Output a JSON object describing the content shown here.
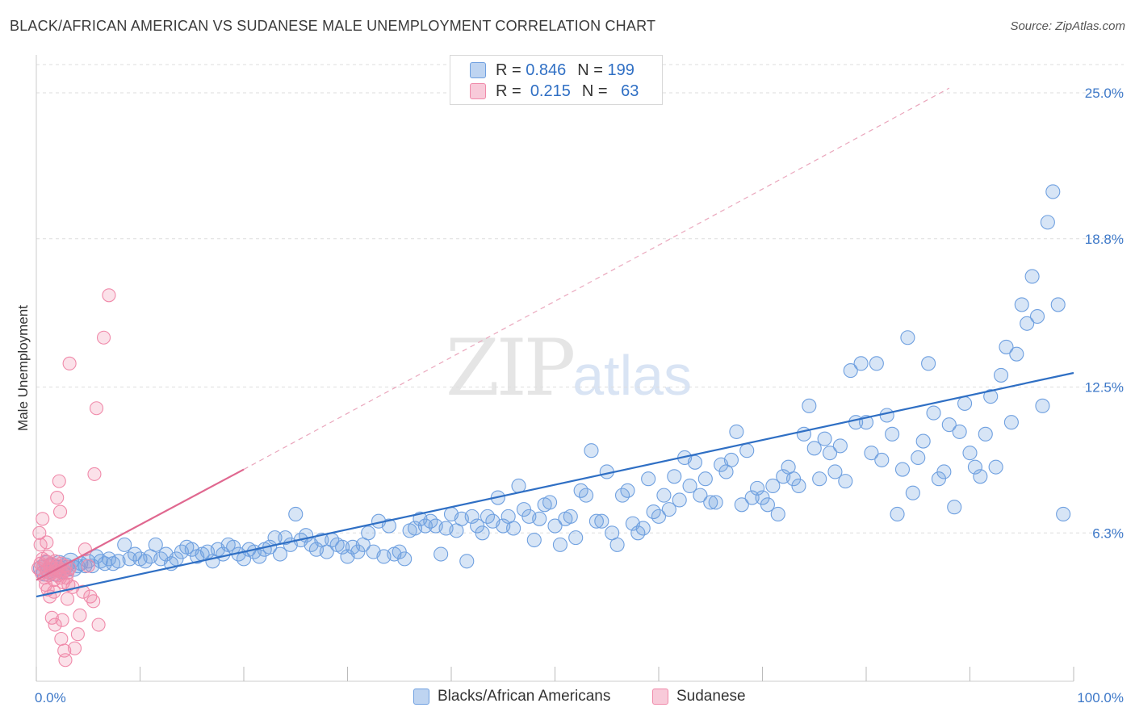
{
  "header": {
    "title": "BLACK/AFRICAN AMERICAN VS SUDANESE MALE UNEMPLOYMENT CORRELATION CHART",
    "source": "Source: ZipAtlas.com"
  },
  "watermark": {
    "zip": "ZIP",
    "atlas": "atlas"
  },
  "legend_top": {
    "rows": [
      {
        "r_label": "R =",
        "r_value": "0.846",
        "n_label": "N =",
        "n_value": "199",
        "color": "#6fa0e0"
      },
      {
        "r_label": "R =",
        "r_value": "0.215",
        "n_label": "N =",
        "n_value": "63",
        "color": "#f08aaa"
      }
    ]
  },
  "legend_bottom": [
    {
      "label": "Blacks/African Americans",
      "color": "#6fa0e0"
    },
    {
      "label": "Sudanese",
      "color": "#f08aaa"
    }
  ],
  "chart_data": {
    "type": "scatter",
    "title": "BLACK/AFRICAN AMERICAN VS SUDANESE MALE UNEMPLOYMENT CORRELATION CHART",
    "xlabel": "",
    "ylabel": "Male Unemployment",
    "xlim": [
      0,
      100
    ],
    "ylim": [
      0,
      26.2
    ],
    "x_tick_labels": [
      "0.0%",
      "100.0%"
    ],
    "y_ticks": [
      6.3,
      12.5,
      18.8,
      25.0
    ],
    "y_tick_labels": [
      "6.3%",
      "12.5%",
      "18.8%",
      "25.0%"
    ],
    "grid": true,
    "legend": "top-center",
    "colors": {
      "blue": "#6fa0e0",
      "blue_line": "#2f6fc4",
      "pink": "#f08aaa",
      "pink_line": "#e06890"
    },
    "series": [
      {
        "name": "Blacks/African Americans",
        "r": 0.846,
        "n": 199,
        "trend": {
          "x": [
            0,
            100
          ],
          "y": [
            3.6,
            13.1
          ]
        },
        "points": [
          [
            0.5,
            4.8
          ],
          [
            0.8,
            4.6
          ],
          [
            1.0,
            5.0
          ],
          [
            1.2,
            4.7
          ],
          [
            1.5,
            4.9
          ],
          [
            1.8,
            4.6
          ],
          [
            2.0,
            4.8
          ],
          [
            2.2,
            5.0
          ],
          [
            2.5,
            4.7
          ],
          [
            2.8,
            4.9
          ],
          [
            3.0,
            4.8
          ],
          [
            3.3,
            5.1
          ],
          [
            3.6,
            4.8
          ],
          [
            4.0,
            4.9
          ],
          [
            4.3,
            5.0
          ],
          [
            4.7,
            4.9
          ],
          [
            5.0,
            5.1
          ],
          [
            5.4,
            4.9
          ],
          [
            5.8,
            5.3
          ],
          [
            6.2,
            5.1
          ],
          [
            6.6,
            5.0
          ],
          [
            7.0,
            5.2
          ],
          [
            7.4,
            5.0
          ],
          [
            7.9,
            5.1
          ],
          [
            8.5,
            5.8
          ],
          [
            9.0,
            5.2
          ],
          [
            9.5,
            5.4
          ],
          [
            10.0,
            5.2
          ],
          [
            10.5,
            5.1
          ],
          [
            11.0,
            5.3
          ],
          [
            11.5,
            5.8
          ],
          [
            12.0,
            5.2
          ],
          [
            12.5,
            5.4
          ],
          [
            13.0,
            5.0
          ],
          [
            13.5,
            5.2
          ],
          [
            14.0,
            5.5
          ],
          [
            14.5,
            5.7
          ],
          [
            15.0,
            5.6
          ],
          [
            15.5,
            5.3
          ],
          [
            16.0,
            5.4
          ],
          [
            16.5,
            5.5
          ],
          [
            17.0,
            5.1
          ],
          [
            17.5,
            5.6
          ],
          [
            18.0,
            5.4
          ],
          [
            18.5,
            5.8
          ],
          [
            19.0,
            5.7
          ],
          [
            19.5,
            5.4
          ],
          [
            20.0,
            5.2
          ],
          [
            20.5,
            5.6
          ],
          [
            21.0,
            5.5
          ],
          [
            21.5,
            5.3
          ],
          [
            22.0,
            5.6
          ],
          [
            22.5,
            5.7
          ],
          [
            23.0,
            6.1
          ],
          [
            23.5,
            5.4
          ],
          [
            24.0,
            6.1
          ],
          [
            24.5,
            5.8
          ],
          [
            25.0,
            7.1
          ],
          [
            25.5,
            6.0
          ],
          [
            26.0,
            6.2
          ],
          [
            26.5,
            5.8
          ],
          [
            27.0,
            5.6
          ],
          [
            27.5,
            6.0
          ],
          [
            28.0,
            5.5
          ],
          [
            28.5,
            6.0
          ],
          [
            29.0,
            5.8
          ],
          [
            29.5,
            5.7
          ],
          [
            30.0,
            5.3
          ],
          [
            30.5,
            5.7
          ],
          [
            31.0,
            5.5
          ],
          [
            31.5,
            5.8
          ],
          [
            32.0,
            6.3
          ],
          [
            32.5,
            5.5
          ],
          [
            33.0,
            6.8
          ],
          [
            33.5,
            5.3
          ],
          [
            34.0,
            6.6
          ],
          [
            34.5,
            5.4
          ],
          [
            35.0,
            5.5
          ],
          [
            35.5,
            5.2
          ],
          [
            36.0,
            6.4
          ],
          [
            36.5,
            6.5
          ],
          [
            37.0,
            6.9
          ],
          [
            37.5,
            6.6
          ],
          [
            38.0,
            6.8
          ],
          [
            38.5,
            6.6
          ],
          [
            39.0,
            5.4
          ],
          [
            39.5,
            6.5
          ],
          [
            40.0,
            7.1
          ],
          [
            40.5,
            6.4
          ],
          [
            41.0,
            6.9
          ],
          [
            41.5,
            5.1
          ],
          [
            42.0,
            7.0
          ],
          [
            42.5,
            6.6
          ],
          [
            43.0,
            6.3
          ],
          [
            43.5,
            7.0
          ],
          [
            44.0,
            6.8
          ],
          [
            44.5,
            7.8
          ],
          [
            45.0,
            6.6
          ],
          [
            45.5,
            7.0
          ],
          [
            46.0,
            6.5
          ],
          [
            46.5,
            8.3
          ],
          [
            47.0,
            7.3
          ],
          [
            47.5,
            7.0
          ],
          [
            48.0,
            6.0
          ],
          [
            48.5,
            6.9
          ],
          [
            49.0,
            7.5
          ],
          [
            49.5,
            7.6
          ],
          [
            50.0,
            6.6
          ],
          [
            50.5,
            5.8
          ],
          [
            51.0,
            6.9
          ],
          [
            51.5,
            7.0
          ],
          [
            52.0,
            6.1
          ],
          [
            52.5,
            8.1
          ],
          [
            53.0,
            7.9
          ],
          [
            53.5,
            9.8
          ],
          [
            54.0,
            6.8
          ],
          [
            54.5,
            6.8
          ],
          [
            55.0,
            8.9
          ],
          [
            55.5,
            6.3
          ],
          [
            56.0,
            5.8
          ],
          [
            56.5,
            7.9
          ],
          [
            57.0,
            8.1
          ],
          [
            57.5,
            6.7
          ],
          [
            58.0,
            6.3
          ],
          [
            58.5,
            6.5
          ],
          [
            59.0,
            8.6
          ],
          [
            59.5,
            7.2
          ],
          [
            60.0,
            7.0
          ],
          [
            60.5,
            7.9
          ],
          [
            61.0,
            7.3
          ],
          [
            61.5,
            8.7
          ],
          [
            62.0,
            7.7
          ],
          [
            62.5,
            9.5
          ],
          [
            63.0,
            8.3
          ],
          [
            63.5,
            9.3
          ],
          [
            64.0,
            7.9
          ],
          [
            64.5,
            8.6
          ],
          [
            65.0,
            7.6
          ],
          [
            65.5,
            7.6
          ],
          [
            66.0,
            9.2
          ],
          [
            66.5,
            8.9
          ],
          [
            67.0,
            9.4
          ],
          [
            67.5,
            10.6
          ],
          [
            68.0,
            7.5
          ],
          [
            68.5,
            9.8
          ],
          [
            69.0,
            7.8
          ],
          [
            69.5,
            8.2
          ],
          [
            70.0,
            7.8
          ],
          [
            70.5,
            7.5
          ],
          [
            71.0,
            8.3
          ],
          [
            71.5,
            7.1
          ],
          [
            72.0,
            8.7
          ],
          [
            72.5,
            9.1
          ],
          [
            73.0,
            8.6
          ],
          [
            73.5,
            8.3
          ],
          [
            74.0,
            10.5
          ],
          [
            74.5,
            11.7
          ],
          [
            75.0,
            9.9
          ],
          [
            75.5,
            8.6
          ],
          [
            76.0,
            10.3
          ],
          [
            76.5,
            9.7
          ],
          [
            77.0,
            8.9
          ],
          [
            77.5,
            10.0
          ],
          [
            78.0,
            8.5
          ],
          [
            78.5,
            13.2
          ],
          [
            79.0,
            11.0
          ],
          [
            79.5,
            13.5
          ],
          [
            80.0,
            11.0
          ],
          [
            80.5,
            9.7
          ],
          [
            81.0,
            13.5
          ],
          [
            81.5,
            9.4
          ],
          [
            82.0,
            11.3
          ],
          [
            82.5,
            10.5
          ],
          [
            83.0,
            7.1
          ],
          [
            83.5,
            9.0
          ],
          [
            84.0,
            14.6
          ],
          [
            84.5,
            8.0
          ],
          [
            85.0,
            9.5
          ],
          [
            85.5,
            10.2
          ],
          [
            86.0,
            13.5
          ],
          [
            86.5,
            11.4
          ],
          [
            87.0,
            8.6
          ],
          [
            87.5,
            8.9
          ],
          [
            88.0,
            10.9
          ],
          [
            88.5,
            7.4
          ],
          [
            89.0,
            10.6
          ],
          [
            89.5,
            11.8
          ],
          [
            90.0,
            9.7
          ],
          [
            90.5,
            9.1
          ],
          [
            91.0,
            8.7
          ],
          [
            91.5,
            10.5
          ],
          [
            92.0,
            12.1
          ],
          [
            92.5,
            9.1
          ],
          [
            93.0,
            13.0
          ],
          [
            93.5,
            14.2
          ],
          [
            94.0,
            11.0
          ],
          [
            94.5,
            13.9
          ],
          [
            95.0,
            16.0
          ],
          [
            95.5,
            15.2
          ],
          [
            96.0,
            17.2
          ],
          [
            96.5,
            15.5
          ],
          [
            97.0,
            11.7
          ],
          [
            97.5,
            19.5
          ],
          [
            98.0,
            20.8
          ],
          [
            98.5,
            16.0
          ],
          [
            99.0,
            7.1
          ]
        ]
      },
      {
        "name": "Sudanese",
        "r": 0.215,
        "n": 63,
        "trend": {
          "x": [
            0,
            20
          ],
          "y": [
            4.3,
            9.0
          ]
        },
        "trend_extended": {
          "x": [
            20,
            88
          ],
          "y": [
            9.0,
            25.2
          ]
        },
        "points": [
          [
            0.2,
            4.8
          ],
          [
            0.4,
            5.0
          ],
          [
            0.5,
            4.6
          ],
          [
            0.6,
            5.2
          ],
          [
            0.7,
            4.9
          ],
          [
            0.8,
            4.4
          ],
          [
            0.9,
            5.1
          ],
          [
            1.0,
            4.7
          ],
          [
            1.1,
            5.3
          ],
          [
            1.2,
            4.5
          ],
          [
            1.3,
            4.9
          ],
          [
            1.4,
            5.0
          ],
          [
            1.5,
            4.6
          ],
          [
            1.6,
            4.8
          ],
          [
            1.7,
            4.3
          ],
          [
            1.8,
            5.1
          ],
          [
            1.9,
            4.7
          ],
          [
            2.0,
            4.9
          ],
          [
            2.1,
            4.5
          ],
          [
            2.2,
            4.8
          ],
          [
            2.3,
            4.4
          ],
          [
            2.4,
            5.0
          ],
          [
            2.5,
            4.6
          ],
          [
            2.6,
            4.2
          ],
          [
            2.7,
            4.7
          ],
          [
            2.8,
            4.9
          ],
          [
            2.9,
            4.4
          ],
          [
            3.0,
            4.6
          ],
          [
            3.1,
            4.1
          ],
          [
            3.2,
            4.8
          ],
          [
            0.4,
            5.8
          ],
          [
            0.6,
            6.9
          ],
          [
            1.0,
            5.9
          ],
          [
            1.3,
            3.6
          ],
          [
            1.5,
            2.7
          ],
          [
            1.7,
            3.8
          ],
          [
            1.8,
            2.4
          ],
          [
            2.0,
            7.8
          ],
          [
            2.2,
            8.5
          ],
          [
            2.3,
            7.2
          ],
          [
            2.4,
            1.8
          ],
          [
            2.5,
            2.6
          ],
          [
            2.7,
            1.3
          ],
          [
            2.8,
            0.9
          ],
          [
            3.0,
            3.5
          ],
          [
            3.2,
            13.5
          ],
          [
            3.5,
            4.0
          ],
          [
            3.7,
            1.4
          ],
          [
            4.0,
            2.0
          ],
          [
            4.2,
            2.8
          ],
          [
            4.5,
            3.8
          ],
          [
            4.7,
            5.6
          ],
          [
            5.0,
            4.9
          ],
          [
            5.2,
            3.6
          ],
          [
            5.5,
            3.4
          ],
          [
            5.6,
            8.8
          ],
          [
            5.8,
            11.6
          ],
          [
            6.0,
            2.4
          ],
          [
            6.5,
            14.6
          ],
          [
            7.0,
            16.4
          ],
          [
            0.3,
            6.3
          ],
          [
            0.9,
            4.1
          ],
          [
            1.1,
            3.9
          ]
        ]
      }
    ]
  }
}
